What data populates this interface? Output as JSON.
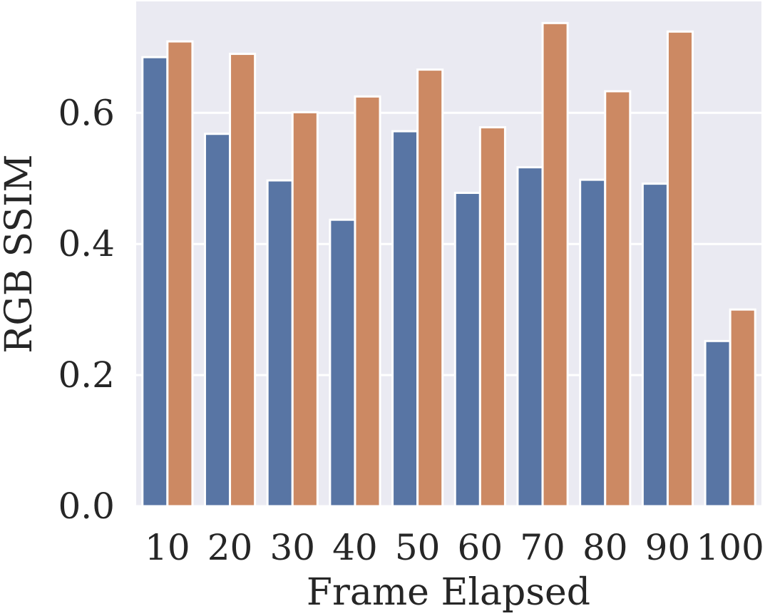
{
  "chart_data": {
    "type": "bar",
    "title": "",
    "xlabel": "Frame Elapsed",
    "ylabel": "RGB SSIM",
    "categories": [
      "10",
      "20",
      "30",
      "40",
      "50",
      "60",
      "70",
      "80",
      "90",
      "100"
    ],
    "series": [
      {
        "values": [
          0.685,
          0.568,
          0.497,
          0.437,
          0.572,
          0.478,
          0.517,
          0.498,
          0.492,
          0.252
        ]
      },
      {
        "values": [
          0.709,
          0.69,
          0.601,
          0.625,
          0.666,
          0.578,
          0.737,
          0.633,
          0.724,
          0.3
        ]
      }
    ],
    "colors": [
      "#5875a4",
      "#cc8963"
    ],
    "yticks": [
      "0.0",
      "0.2",
      "0.4",
      "0.6"
    ],
    "ytick_values": [
      0.0,
      0.2,
      0.4,
      0.6
    ],
    "ylim": [
      0,
      0.77
    ],
    "grid": true,
    "background": "#eaeaf2"
  }
}
